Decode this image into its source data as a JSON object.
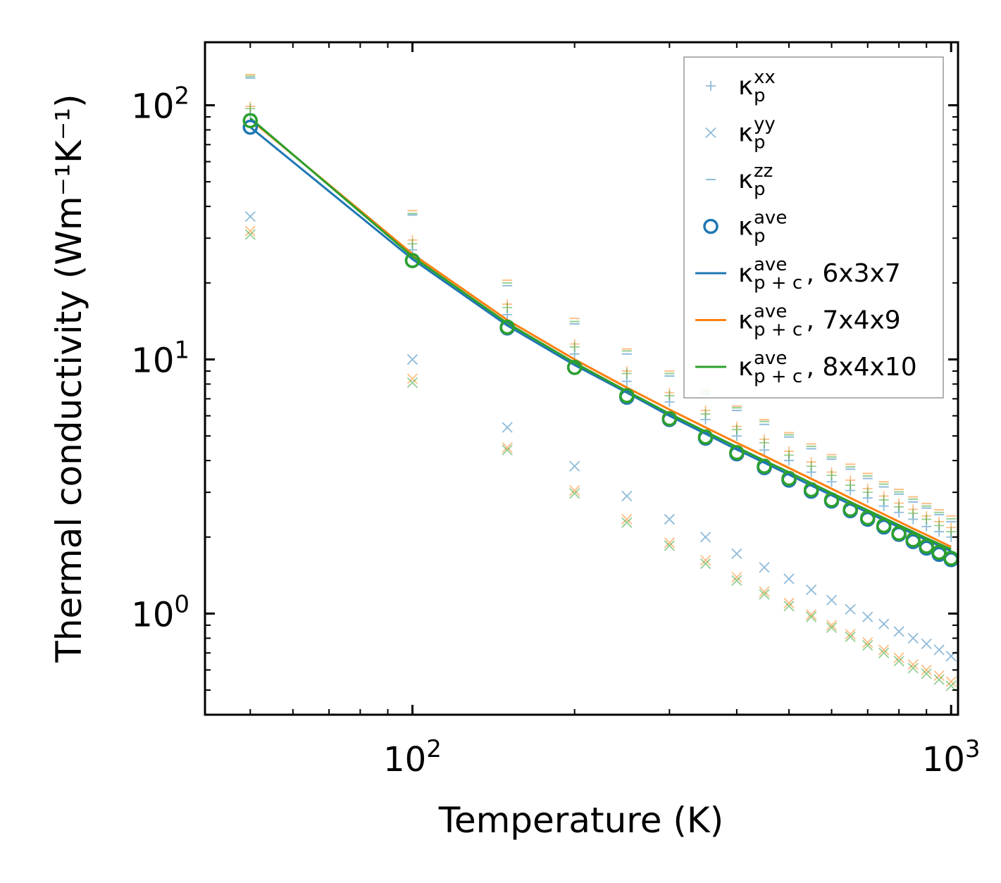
{
  "chart_data": {
    "type": "scatter",
    "title": "",
    "xlabel": "Temperature (K)",
    "ylabel": "Thermal conductivity (Wm⁻¹K⁻¹)",
    "xscale": "log",
    "yscale": "log",
    "xlim": [
      41.2,
      1030
    ],
    "ylim": [
      0.4,
      177
    ],
    "x_ticks": [
      {
        "value": 100,
        "base": "10",
        "exp": "2"
      },
      {
        "value": 1000,
        "base": "10",
        "exp": "3"
      }
    ],
    "y_ticks": [
      {
        "value": 1,
        "base": "10",
        "exp": "0"
      },
      {
        "value": 10,
        "base": "10",
        "exp": "1"
      },
      {
        "value": 100,
        "base": "10",
        "exp": "2"
      }
    ],
    "legend_position": "top-right",
    "colors": {
      "blue": "#1f77b4",
      "orange": "#ff7f0e",
      "green": "#2ca02c"
    },
    "x": [
      50,
      100,
      150,
      200,
      250,
      300,
      350,
      400,
      450,
      500,
      550,
      600,
      650,
      700,
      750,
      800,
      850,
      900,
      950,
      1000
    ],
    "legend": [
      {
        "base": "κ",
        "sup": "xx",
        "sub": "p",
        "suffix": "",
        "marker": "plus",
        "color": "#1f77b4"
      },
      {
        "base": "κ",
        "sup": "yy",
        "sub": "p",
        "suffix": "",
        "marker": "x",
        "color": "#1f77b4"
      },
      {
        "base": "κ",
        "sup": "zz",
        "sub": "p",
        "suffix": "",
        "marker": "hline",
        "color": "#1f77b4"
      },
      {
        "base": "κ",
        "sup": "ave",
        "sub": "p",
        "suffix": "",
        "marker": "circle",
        "color": "#1f77b4"
      },
      {
        "base": "κ",
        "sup": "ave",
        "sub": "p + c",
        "suffix": ", 6x3x7",
        "marker": "line",
        "color": "#1f77b4"
      },
      {
        "base": "κ",
        "sup": "ave",
        "sub": "p + c",
        "suffix": ", 7x4x9",
        "marker": "line",
        "color": "#ff7f0e"
      },
      {
        "base": "κ",
        "sup": "ave",
        "sub": "p + c",
        "suffix": ", 8x4x10",
        "marker": "line",
        "color": "#2ca02c"
      }
    ],
    "series": [
      {
        "name": "xx 6x3x7",
        "group": "6x3x7",
        "marker": "plus",
        "color": "#1f77b4",
        "values": [
          92,
          27,
          15.0,
          10.5,
          8.2,
          6.8,
          5.8,
          5.0,
          4.4,
          4.0,
          3.6,
          3.3,
          3.05,
          2.85,
          2.65,
          2.5,
          2.35,
          2.2,
          2.1,
          2.0
        ]
      },
      {
        "name": "xx 7x4x9",
        "group": "7x4x9",
        "marker": "plus",
        "color": "#ff7f0e",
        "values": [
          99,
          29.5,
          16.5,
          11.5,
          9.0,
          7.4,
          6.3,
          5.45,
          4.85,
          4.35,
          3.95,
          3.6,
          3.35,
          3.1,
          2.9,
          2.72,
          2.57,
          2.42,
          2.3,
          2.18
        ]
      },
      {
        "name": "xx 8x4x10",
        "group": "8x4x10",
        "marker": "plus",
        "color": "#2ca02c",
        "values": [
          97,
          28.5,
          16.0,
          11.2,
          8.8,
          7.2,
          6.1,
          5.3,
          4.7,
          4.2,
          3.8,
          3.5,
          3.2,
          3.0,
          2.8,
          2.63,
          2.48,
          2.35,
          2.22,
          2.1
        ]
      },
      {
        "name": "yy 6x3x7",
        "group": "6x3x7",
        "marker": "x",
        "color": "#1f77b4",
        "values": [
          36.5,
          10.0,
          5.4,
          3.8,
          2.9,
          2.35,
          2.0,
          1.72,
          1.52,
          1.37,
          1.24,
          1.13,
          1.04,
          0.97,
          0.91,
          0.85,
          0.8,
          0.76,
          0.72,
          0.68
        ]
      },
      {
        "name": "yy 7x4x9",
        "group": "7x4x9",
        "marker": "x",
        "color": "#ff7f0e",
        "values": [
          32,
          8.4,
          4.5,
          3.05,
          2.35,
          1.9,
          1.62,
          1.39,
          1.22,
          1.1,
          0.99,
          0.9,
          0.83,
          0.77,
          0.72,
          0.67,
          0.63,
          0.6,
          0.57,
          0.54
        ]
      },
      {
        "name": "yy 8x4x10",
        "group": "8x4x10",
        "marker": "x",
        "color": "#2ca02c",
        "values": [
          31,
          8.1,
          4.4,
          2.97,
          2.28,
          1.85,
          1.57,
          1.35,
          1.19,
          1.07,
          0.97,
          0.88,
          0.81,
          0.75,
          0.7,
          0.65,
          0.61,
          0.58,
          0.55,
          0.52
        ]
      },
      {
        "name": "zz 6x3x7",
        "group": "6x3x7",
        "marker": "hline",
        "color": "#1f77b4",
        "values": [
          128,
          37,
          19.5,
          13.8,
          10.5,
          8.6,
          7.3,
          6.3,
          5.55,
          4.95,
          4.45,
          4.05,
          3.7,
          3.4,
          3.15,
          2.95,
          2.75,
          2.6,
          2.45,
          2.3
        ]
      },
      {
        "name": "zz 7x4x9",
        "group": "7x4x9",
        "marker": "hline",
        "color": "#ff7f0e",
        "values": [
          132,
          38.5,
          20.5,
          14.5,
          11.0,
          9.0,
          7.6,
          6.55,
          5.8,
          5.15,
          4.65,
          4.22,
          3.87,
          3.56,
          3.3,
          3.08,
          2.88,
          2.71,
          2.56,
          2.42
        ]
      },
      {
        "name": "zz 8x4x10",
        "group": "8x4x10",
        "marker": "hline",
        "color": "#2ca02c",
        "values": [
          130,
          37.5,
          20.0,
          14.1,
          10.8,
          8.8,
          7.45,
          6.45,
          5.7,
          5.05,
          4.55,
          4.13,
          3.78,
          3.48,
          3.23,
          3.01,
          2.82,
          2.65,
          2.5,
          2.36
        ]
      },
      {
        "name": "ave 6x3x7",
        "group": "6x3x7",
        "marker": "circle",
        "color": "#1f77b4",
        "values": [
          82,
          24.5,
          13.3,
          9.3,
          7.1,
          5.8,
          4.9,
          4.25,
          3.75,
          3.35,
          3.03,
          2.77,
          2.54,
          2.35,
          2.19,
          2.05,
          1.92,
          1.81,
          1.71,
          1.63
        ]
      },
      {
        "name": "ave 8x4x10",
        "group": "8x4x10",
        "marker": "circle",
        "color": "#2ca02c",
        "values": [
          87,
          24.5,
          13.4,
          9.3,
          7.2,
          5.85,
          4.95,
          4.3,
          3.8,
          3.4,
          3.07,
          2.8,
          2.57,
          2.38,
          2.22,
          2.07,
          1.95,
          1.84,
          1.74,
          1.65
        ]
      },
      {
        "name": "p+c 6x3x7",
        "group": "6x3x7",
        "marker": "line",
        "color": "#1f77b4",
        "values": [
          82,
          24.8,
          13.6,
          9.5,
          7.4,
          6.0,
          5.1,
          4.42,
          3.92,
          3.52,
          3.19,
          2.92,
          2.69,
          2.5,
          2.33,
          2.19,
          2.06,
          1.95,
          1.85,
          1.76
        ]
      },
      {
        "name": "p+c 7x4x9",
        "group": "7x4x9",
        "marker": "line",
        "color": "#ff7f0e",
        "values": [
          88,
          26.0,
          14.3,
          10.0,
          7.75,
          6.35,
          5.4,
          4.7,
          4.17,
          3.74,
          3.39,
          3.1,
          2.85,
          2.64,
          2.46,
          2.3,
          2.16,
          2.04,
          1.93,
          1.83
        ]
      },
      {
        "name": "p+c 8x4x10",
        "group": "8x4x10",
        "marker": "line",
        "color": "#2ca02c",
        "values": [
          89,
          25.4,
          13.9,
          9.7,
          7.5,
          6.12,
          5.2,
          4.52,
          4.0,
          3.6,
          3.26,
          2.98,
          2.75,
          2.55,
          2.38,
          2.23,
          2.1,
          1.98,
          1.88,
          1.79
        ]
      }
    ]
  }
}
